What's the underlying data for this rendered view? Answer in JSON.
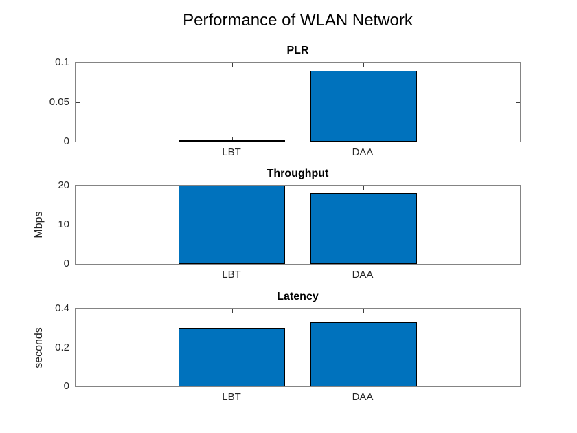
{
  "figure": {
    "title": "Performance of WLAN Network",
    "background": "#ffffff"
  },
  "colors": {
    "bar_fill": "#0072BD",
    "bar_edge": "#000000",
    "axis_box": "#848484",
    "tick": "#3d3d3d",
    "tick_label": "#262626",
    "title_color": "#000000"
  },
  "chart_data": [
    {
      "type": "bar",
      "title": "PLR",
      "categories": [
        "LBT",
        "DAA"
      ],
      "values": [
        0.001,
        0.09
      ],
      "xlabel": "",
      "ylabel": "",
      "ylim": [
        0,
        0.1
      ],
      "yticks": [
        0,
        0.05,
        0.1
      ],
      "ytick_labels": [
        "0",
        "0.05",
        "0.1"
      ],
      "grid": false,
      "legend": "none"
    },
    {
      "type": "bar",
      "title": "Throughput",
      "categories": [
        "LBT",
        "DAA"
      ],
      "values": [
        20,
        18
      ],
      "xlabel": "",
      "ylabel": "Mbps",
      "ylim": [
        0,
        20
      ],
      "yticks": [
        0,
        10,
        20
      ],
      "ytick_labels": [
        "0",
        "10",
        "20"
      ],
      "grid": false,
      "legend": "none"
    },
    {
      "type": "bar",
      "title": "Latency",
      "categories": [
        "LBT",
        "DAA"
      ],
      "values": [
        0.3,
        0.33
      ],
      "xlabel": "",
      "ylabel": "seconds",
      "ylim": [
        0,
        0.4
      ],
      "yticks": [
        0,
        0.2,
        0.4
      ],
      "ytick_labels": [
        "0",
        "0.2",
        "0.4"
      ],
      "grid": false,
      "legend": "none"
    }
  ]
}
